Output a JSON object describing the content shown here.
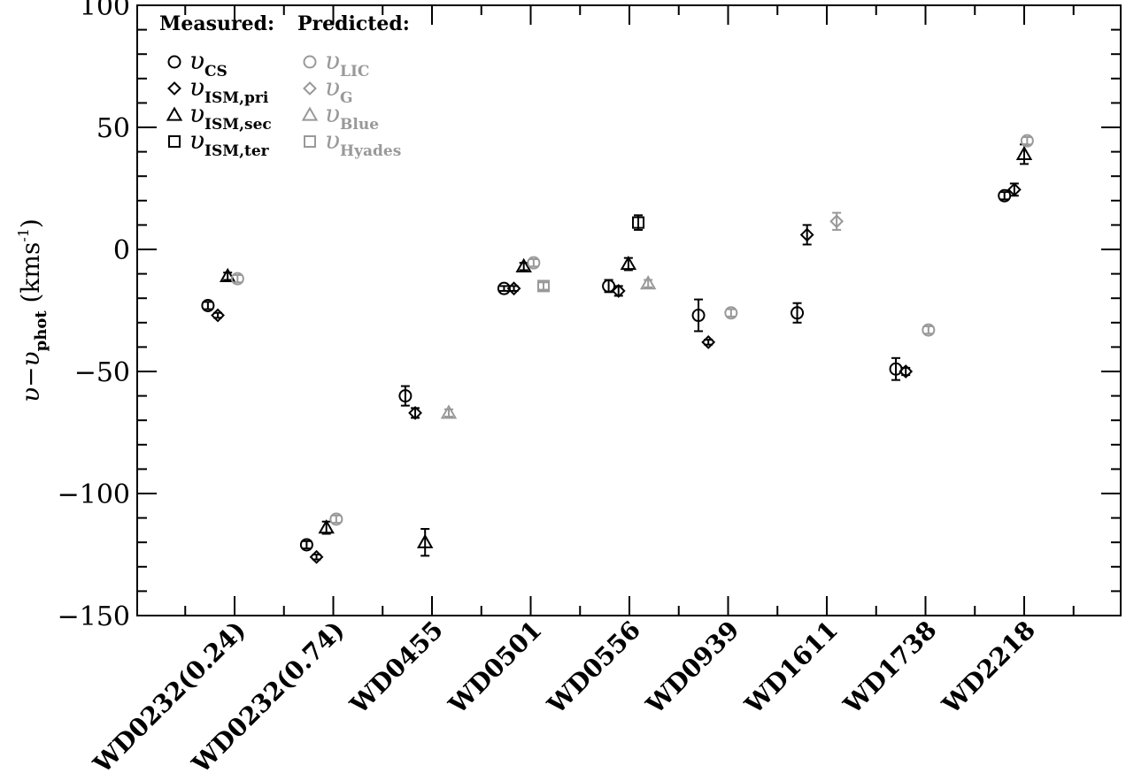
{
  "chart_data": {
    "type": "scatter",
    "ylabel": {
      "prefix": "υ−υ",
      "sub": "phot",
      "unit": "(kms",
      "sup": "-1",
      "close": ")"
    },
    "ylim": [
      -150,
      100
    ],
    "yticks": [
      {
        "value": 100,
        "label": "100"
      },
      {
        "value": 50,
        "label": "50"
      },
      {
        "value": 0,
        "label": "0"
      },
      {
        "value": -50,
        "label": "−50"
      },
      {
        "value": -100,
        "label": "−100"
      },
      {
        "value": -150,
        "label": "−150"
      }
    ],
    "categories": [
      "WD0232(0.24)",
      "WD0232(0.74)",
      "WD0455",
      "WD0501",
      "WD0556",
      "WD0939",
      "WD1611",
      "WD1738",
      "WD2218"
    ],
    "legend": {
      "measured_title": "Measured:",
      "predicted_title": "Predicted:",
      "entries": [
        {
          "key": "cs",
          "shape": "circle",
          "color": "#000000",
          "sym": "υ",
          "sub": "CS"
        },
        {
          "key": "pri",
          "shape": "diamond",
          "color": "#000000",
          "sym": "υ",
          "sub": "ISM,pri"
        },
        {
          "key": "sec",
          "shape": "triangle",
          "color": "#000000",
          "sym": "υ",
          "sub": "ISM,sec"
        },
        {
          "key": "ter",
          "shape": "square",
          "color": "#000000",
          "sym": "υ",
          "sub": "ISM,ter"
        },
        {
          "key": "lic",
          "shape": "circle",
          "color": "#999999",
          "sym": "υ",
          "sub": "LIC"
        },
        {
          "key": "g",
          "shape": "diamond",
          "color": "#999999",
          "sym": "υ",
          "sub": "G"
        },
        {
          "key": "blue",
          "shape": "triangle",
          "color": "#999999",
          "sym": "υ",
          "sub": "Blue"
        },
        {
          "key": "hyades",
          "shape": "square",
          "color": "#999999",
          "sym": "υ",
          "sub": "Hyades"
        }
      ]
    },
    "series": [
      {
        "key": "cs",
        "points": [
          {
            "cat": 0,
            "offset": -0.27,
            "y": -23,
            "err": 1.5
          },
          {
            "cat": 1,
            "offset": -0.27,
            "y": -121,
            "err": 1.5
          },
          {
            "cat": 2,
            "offset": -0.27,
            "y": -60,
            "err": 4
          },
          {
            "cat": 3,
            "offset": -0.27,
            "y": -16,
            "err": 1
          },
          {
            "cat": 4,
            "offset": -0.21,
            "y": -15,
            "err": 2.5
          },
          {
            "cat": 5,
            "offset": -0.3,
            "y": -27,
            "err": 6.5
          },
          {
            "cat": 6,
            "offset": -0.3,
            "y": -26,
            "err": 4
          },
          {
            "cat": 7,
            "offset": -0.3,
            "y": -49,
            "err": 4.5
          },
          {
            "cat": 8,
            "offset": -0.2,
            "y": 22,
            "err": 1.5
          }
        ]
      },
      {
        "key": "pri",
        "points": [
          {
            "cat": 0,
            "offset": -0.17,
            "y": -27,
            "err": 1
          },
          {
            "cat": 1,
            "offset": -0.17,
            "y": -126,
            "err": 1
          },
          {
            "cat": 2,
            "offset": -0.17,
            "y": -67,
            "err": 2
          },
          {
            "cat": 3,
            "offset": -0.17,
            "y": -16,
            "err": 1
          },
          {
            "cat": 4,
            "offset": -0.11,
            "y": -17,
            "err": 2
          },
          {
            "cat": 5,
            "offset": -0.2,
            "y": -38,
            "err": 1
          },
          {
            "cat": 6,
            "offset": -0.2,
            "y": 6,
            "err": 4
          },
          {
            "cat": 7,
            "offset": -0.2,
            "y": -50,
            "err": 1.5
          },
          {
            "cat": 8,
            "offset": -0.1,
            "y": 24.5,
            "err": 2.5
          }
        ]
      },
      {
        "key": "sec",
        "points": [
          {
            "cat": 0,
            "offset": -0.07,
            "y": -11,
            "err": 1.5
          },
          {
            "cat": 1,
            "offset": -0.07,
            "y": -114,
            "err": 2.5
          },
          {
            "cat": 2,
            "offset": -0.07,
            "y": -120,
            "err": 5.5
          },
          {
            "cat": 3,
            "offset": -0.07,
            "y": -7,
            "err": 1.5
          },
          {
            "cat": 4,
            "offset": -0.01,
            "y": -6,
            "err": 2.5
          },
          {
            "cat": 8,
            "offset": 0.0,
            "y": 39,
            "err": 4
          }
        ]
      },
      {
        "key": "ter",
        "points": [
          {
            "cat": 4,
            "offset": 0.09,
            "y": 11,
            "err": 3
          }
        ]
      },
      {
        "key": "lic",
        "points": [
          {
            "cat": 0,
            "offset": 0.03,
            "y": -12,
            "err": 1.5
          },
          {
            "cat": 1,
            "offset": 0.03,
            "y": -110.5,
            "err": 1.5
          },
          {
            "cat": 3,
            "offset": 0.03,
            "y": -5.5,
            "err": 1.5
          },
          {
            "cat": 5,
            "offset": 0.03,
            "y": -26,
            "err": 1.5
          },
          {
            "cat": 7,
            "offset": 0.03,
            "y": -33,
            "err": 1.5
          },
          {
            "cat": 8,
            "offset": 0.03,
            "y": 44.5,
            "err": 1.5
          }
        ]
      },
      {
        "key": "g",
        "points": [
          {
            "cat": 6,
            "offset": 0.1,
            "y": 11.5,
            "err": 3.5
          }
        ]
      },
      {
        "key": "blue",
        "points": [
          {
            "cat": 2,
            "offset": 0.17,
            "y": -67,
            "err": 1.5
          },
          {
            "cat": 4,
            "offset": 0.19,
            "y": -14,
            "err": 1.5
          }
        ]
      },
      {
        "key": "hyades",
        "points": [
          {
            "cat": 3,
            "offset": 0.13,
            "y": -15,
            "err": 1.5
          }
        ]
      }
    ]
  }
}
